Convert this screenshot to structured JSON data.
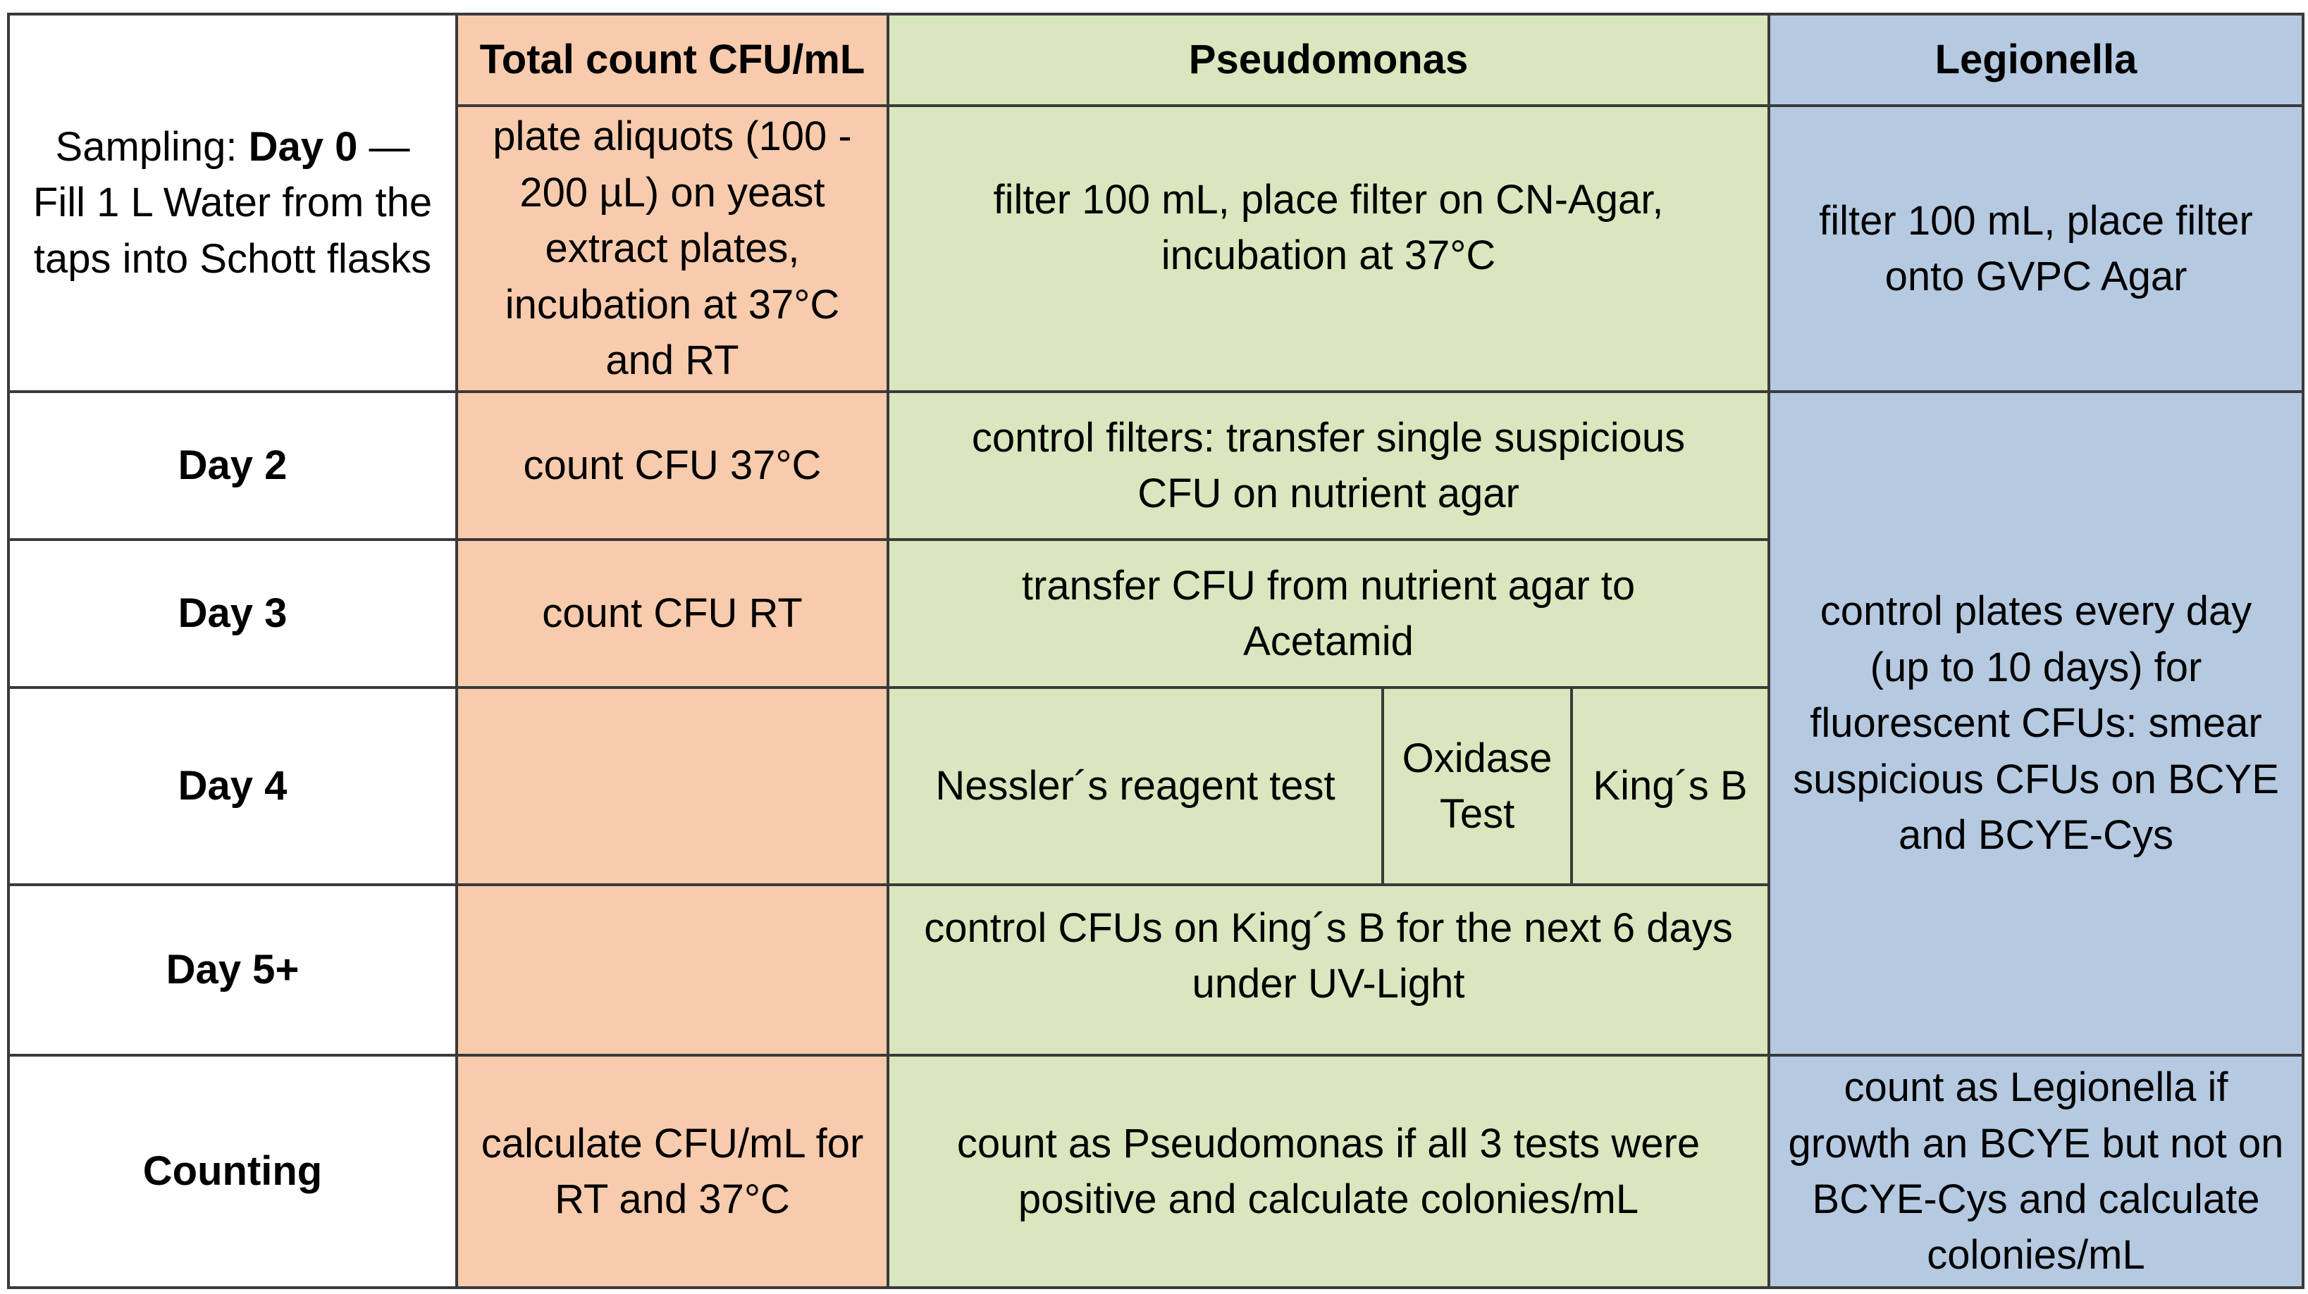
{
  "headers": {
    "total": "Total count CFU/mL",
    "pseudomonas": "Pseudomonas",
    "legionella": "Legionella"
  },
  "rows": {
    "day0": {
      "label_prefix": "Sampling: ",
      "label_bold": "Day 0",
      "label_suffix": " — Fill 1 L Water from the taps into Schott flasks",
      "total": "plate aliquots (100 - 200 µL) on yeast extract plates, incubation at 37°C and RT",
      "pseudomonas": "filter 100 mL, place filter on CN-Agar, incubation at 37°C",
      "legionella": "filter 100 mL, place filter onto GVPC Agar"
    },
    "day2": {
      "label": "Day 2",
      "total": "count CFU 37°C",
      "pseudomonas": "control filters: transfer single suspicious CFU on nutrient agar"
    },
    "day3": {
      "label": "Day 3",
      "total": "count CFU RT",
      "pseudomonas": "transfer CFU from nutrient agar to Acetamid"
    },
    "day4": {
      "label": "Day 4",
      "total": "",
      "pseudo_nessler": "Nessler´s reagent test",
      "pseudo_oxidase": "Oxidase Test",
      "pseudo_kingsb": "King´s B"
    },
    "day5": {
      "label": "Day 5+",
      "total": "",
      "pseudomonas": "control CFUs on King´s B for the next 6 days under UV-Light"
    },
    "legionella_days2to5": "control plates every day (up to 10 days) for fluorescent CFUs: smear suspicious CFUs on BCYE and BCYE-Cys",
    "counting": {
      "label": "Counting",
      "total": "calculate CFU/mL for RT and 37°C",
      "pseudomonas": "count as Pseudomonas if all 3 tests were positive and calculate colonies/mL",
      "legionella": "count as Legionella if growth an BCYE but not on BCYE-Cys and calculate colonies/mL"
    }
  },
  "colors": {
    "total": "#f8cbad",
    "pseudomonas": "#d9e6be",
    "legionella": "#b5c9e1",
    "border": "#3a3a3a"
  }
}
